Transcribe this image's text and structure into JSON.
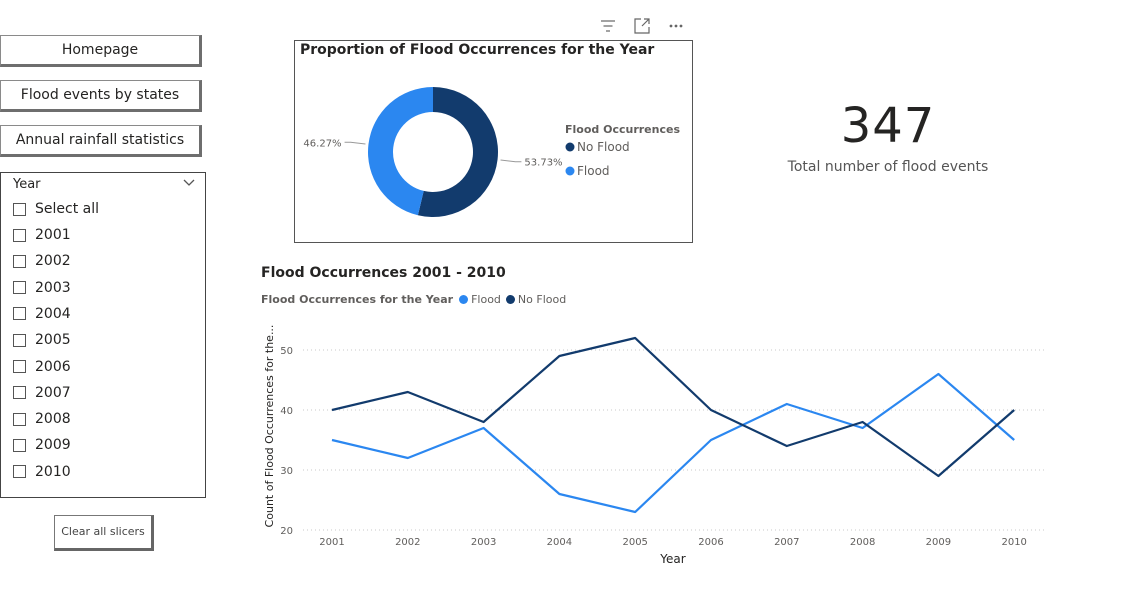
{
  "nav": {
    "homepage": "Homepage",
    "flood_by_states": "Flood events by states",
    "annual_rainfall": "Annual rainfall statistics"
  },
  "slicer": {
    "title": "Year",
    "select_all": "Select all",
    "options": [
      "2001",
      "2002",
      "2003",
      "2004",
      "2005",
      "2006",
      "2007",
      "2008",
      "2009",
      "2010"
    ]
  },
  "clear_button": "Clear all slicers",
  "visual_header_icons": [
    "filter-icon",
    "focus-mode-icon",
    "more-options-icon"
  ],
  "kpi": {
    "value": "347",
    "label": "Total number of flood events"
  },
  "colors": {
    "flood": "#2b87f0",
    "no_flood": "#123b6d"
  },
  "chart_data": [
    {
      "type": "pie",
      "subtype": "donut",
      "title": "Proportion of Flood Occurrences for the Year",
      "legend_title": "Flood Occurrences",
      "legend_position": "right",
      "slices": [
        {
          "label": "No Flood",
          "value": 53.73,
          "display": "53.73%"
        },
        {
          "label": "Flood",
          "value": 46.27,
          "display": "46.27%"
        }
      ]
    },
    {
      "type": "line",
      "title": "Flood Occurrences 2001 - 2010",
      "legend_title": "Flood Occurrences for the Year",
      "legend_position": "top-left",
      "xlabel": "Year",
      "ylabel": "Count of Flood Occurrences for the...",
      "x": [
        "2001",
        "2002",
        "2003",
        "2004",
        "2005",
        "2006",
        "2007",
        "2008",
        "2009",
        "2010"
      ],
      "yticks": [
        20,
        30,
        40,
        50
      ],
      "ylim": [
        20,
        53
      ],
      "grid": true,
      "series": [
        {
          "name": "Flood",
          "values": [
            35,
            32,
            37,
            26,
            23,
            35,
            41,
            37,
            46,
            35
          ]
        },
        {
          "name": "No Flood",
          "values": [
            40,
            43,
            38,
            49,
            52,
            40,
            34,
            38,
            29,
            40
          ]
        }
      ]
    }
  ]
}
